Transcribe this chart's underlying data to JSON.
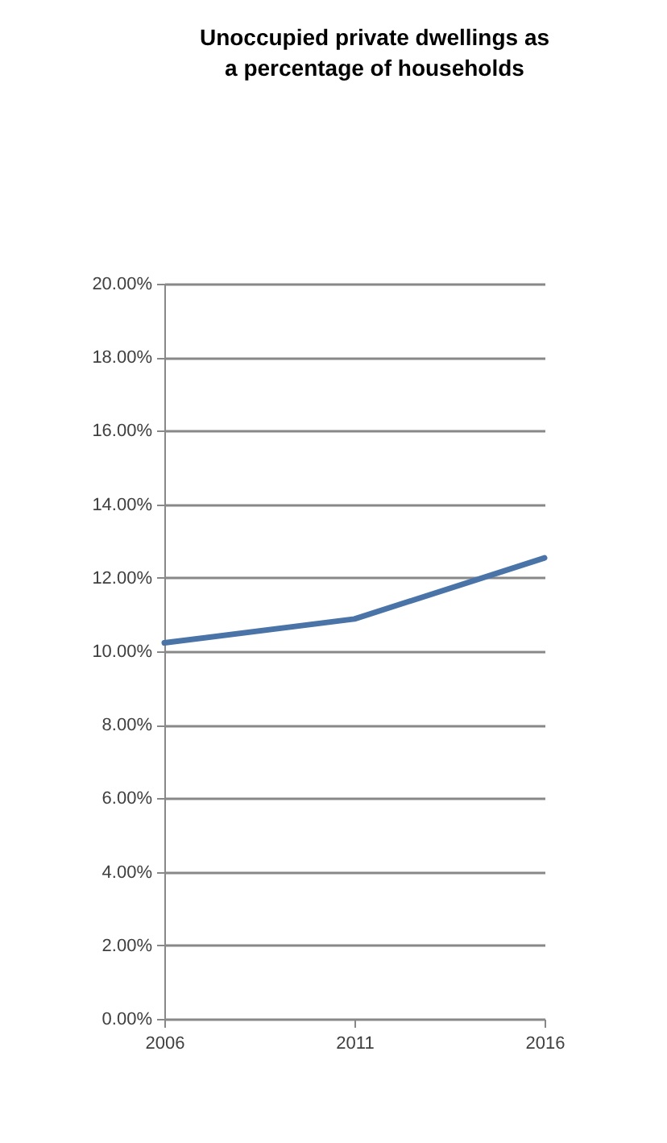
{
  "chart_data": {
    "type": "line",
    "title": "Unoccupied private dwellings as a percentage of households",
    "categories": [
      "2006",
      "2011",
      "2016"
    ],
    "series": [
      {
        "color": "#4a74a8",
        "values": [
          10.23,
          10.88,
          12.54
        ]
      }
    ],
    "ylim": [
      0,
      20
    ],
    "yticks": [
      {
        "value": 0,
        "label": "0.00%"
      },
      {
        "value": 2,
        "label": "2.00%"
      },
      {
        "value": 4,
        "label": "4.00%"
      },
      {
        "value": 6,
        "label": "6.00%"
      },
      {
        "value": 8,
        "label": "8.00%"
      },
      {
        "value": 10,
        "label": "10.00%"
      },
      {
        "value": 12,
        "label": "12.00%"
      },
      {
        "value": 14,
        "label": "14.00%"
      },
      {
        "value": 16,
        "label": "16.00%"
      },
      {
        "value": 18,
        "label": "18.00%"
      },
      {
        "value": 20,
        "label": "20.00%"
      }
    ],
    "grid": "y",
    "marker": "none",
    "line_style": "solid"
  }
}
